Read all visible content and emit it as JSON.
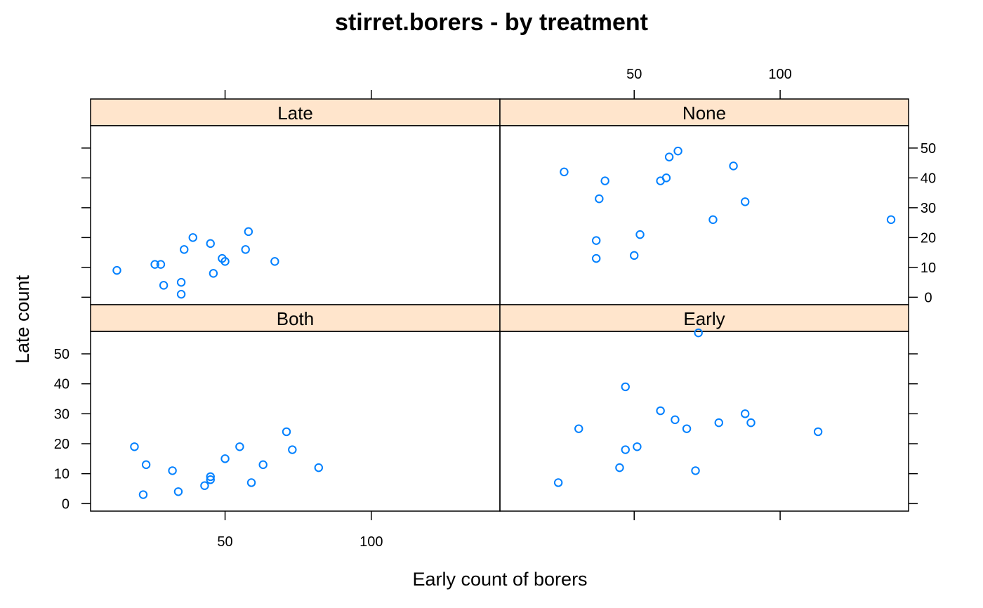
{
  "colors": {
    "strip_fill": "#FFE5CC",
    "point": "#0080FF"
  },
  "chart_data": {
    "type": "scatter",
    "title": "stirret.borers - by treatment",
    "xlabel": "Early count of borers",
    "ylabel": "Late count",
    "xlim": [
      4,
      144
    ],
    "ylim": [
      -2.5,
      57.5
    ],
    "x_ticks": [
      50,
      100
    ],
    "x_tick_labels": [
      "50",
      "100"
    ],
    "y_ticks": [
      0,
      10,
      20,
      30,
      40,
      50
    ],
    "y_tick_labels": [
      "0",
      "10",
      "20",
      "30",
      "40",
      "50"
    ],
    "grid": false,
    "layout": "2x2",
    "panels": [
      {
        "name": "Late",
        "points": [
          [
            13,
            9
          ],
          [
            26,
            11
          ],
          [
            28,
            11
          ],
          [
            29,
            4
          ],
          [
            35,
            5
          ],
          [
            35,
            1
          ],
          [
            36,
            16
          ],
          [
            39,
            20
          ],
          [
            45,
            18
          ],
          [
            46,
            8
          ],
          [
            49,
            13
          ],
          [
            50,
            12
          ],
          [
            57,
            16
          ],
          [
            58,
            22
          ],
          [
            67,
            12
          ]
        ]
      },
      {
        "name": "None",
        "points": [
          [
            26,
            42
          ],
          [
            37,
            19
          ],
          [
            37,
            13
          ],
          [
            38,
            33
          ],
          [
            40,
            39
          ],
          [
            50,
            14
          ],
          [
            52,
            21
          ],
          [
            59,
            39
          ],
          [
            61,
            40
          ],
          [
            62,
            47
          ],
          [
            65,
            49
          ],
          [
            77,
            26
          ],
          [
            84,
            44
          ],
          [
            88,
            32
          ],
          [
            138,
            26
          ]
        ]
      },
      {
        "name": "Both",
        "points": [
          [
            19,
            19
          ],
          [
            22,
            3
          ],
          [
            23,
            13
          ],
          [
            32,
            11
          ],
          [
            34,
            4
          ],
          [
            43,
            6
          ],
          [
            45,
            8
          ],
          [
            45,
            9
          ],
          [
            50,
            15
          ],
          [
            55,
            19
          ],
          [
            59,
            7
          ],
          [
            63,
            13
          ],
          [
            71,
            24
          ],
          [
            73,
            18
          ],
          [
            82,
            12
          ]
        ]
      },
      {
        "name": "Early",
        "points": [
          [
            24,
            7
          ],
          [
            31,
            25
          ],
          [
            45,
            12
          ],
          [
            47,
            39
          ],
          [
            47,
            18
          ],
          [
            51,
            19
          ],
          [
            59,
            31
          ],
          [
            64,
            28
          ],
          [
            68,
            25
          ],
          [
            71,
            11
          ],
          [
            72,
            57
          ],
          [
            79,
            27
          ],
          [
            88,
            30
          ],
          [
            90,
            27
          ],
          [
            113,
            24
          ]
        ]
      }
    ]
  }
}
